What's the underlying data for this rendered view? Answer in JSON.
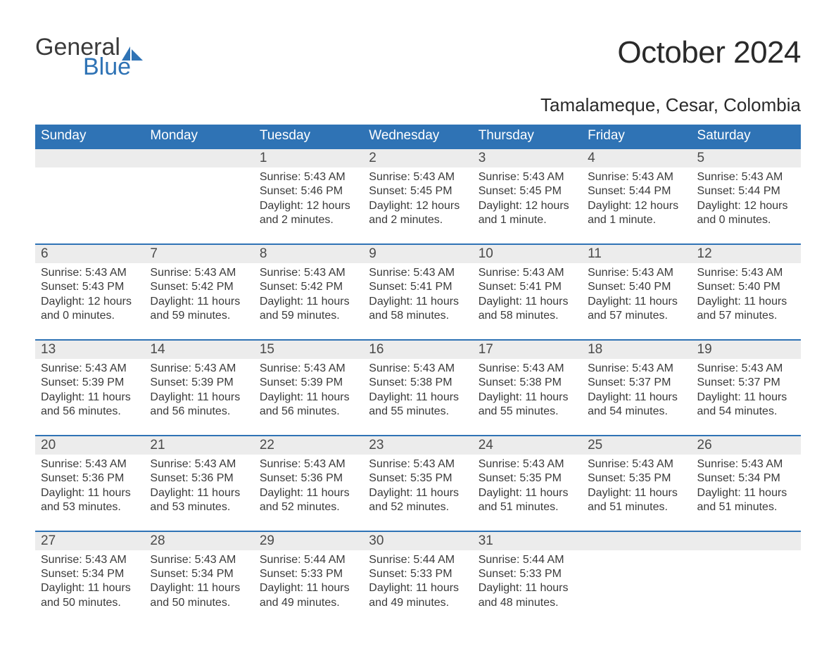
{
  "logo": {
    "word1": "General",
    "word2": "Blue",
    "accent_color": "#2f73b5",
    "text_color": "#3a3a3a"
  },
  "title": "October 2024",
  "location": "Tamalameque, Cesar, Colombia",
  "colors": {
    "header_bg": "#2f73b5",
    "header_text": "#ffffff",
    "daynum_bg": "#ececec",
    "body_text": "#3a3a3a",
    "rule": "#2f73b5",
    "page_bg": "#ffffff"
  },
  "fonts": {
    "title_size_pt": 33,
    "location_size_pt": 20,
    "dow_size_pt": 14,
    "daynum_size_pt": 14,
    "body_size_pt": 12
  },
  "days_of_week": [
    "Sunday",
    "Monday",
    "Tuesday",
    "Wednesday",
    "Thursday",
    "Friday",
    "Saturday"
  ],
  "weeks": [
    [
      {
        "n": "",
        "sunrise": "",
        "sunset": "",
        "daylight1": "",
        "daylight2": ""
      },
      {
        "n": "",
        "sunrise": "",
        "sunset": "",
        "daylight1": "",
        "daylight2": ""
      },
      {
        "n": "1",
        "sunrise": "Sunrise: 5:43 AM",
        "sunset": "Sunset: 5:46 PM",
        "daylight1": "Daylight: 12 hours",
        "daylight2": "and 2 minutes."
      },
      {
        "n": "2",
        "sunrise": "Sunrise: 5:43 AM",
        "sunset": "Sunset: 5:45 PM",
        "daylight1": "Daylight: 12 hours",
        "daylight2": "and 2 minutes."
      },
      {
        "n": "3",
        "sunrise": "Sunrise: 5:43 AM",
        "sunset": "Sunset: 5:45 PM",
        "daylight1": "Daylight: 12 hours",
        "daylight2": "and 1 minute."
      },
      {
        "n": "4",
        "sunrise": "Sunrise: 5:43 AM",
        "sunset": "Sunset: 5:44 PM",
        "daylight1": "Daylight: 12 hours",
        "daylight2": "and 1 minute."
      },
      {
        "n": "5",
        "sunrise": "Sunrise: 5:43 AM",
        "sunset": "Sunset: 5:44 PM",
        "daylight1": "Daylight: 12 hours",
        "daylight2": "and 0 minutes."
      }
    ],
    [
      {
        "n": "6",
        "sunrise": "Sunrise: 5:43 AM",
        "sunset": "Sunset: 5:43 PM",
        "daylight1": "Daylight: 12 hours",
        "daylight2": "and 0 minutes."
      },
      {
        "n": "7",
        "sunrise": "Sunrise: 5:43 AM",
        "sunset": "Sunset: 5:42 PM",
        "daylight1": "Daylight: 11 hours",
        "daylight2": "and 59 minutes."
      },
      {
        "n": "8",
        "sunrise": "Sunrise: 5:43 AM",
        "sunset": "Sunset: 5:42 PM",
        "daylight1": "Daylight: 11 hours",
        "daylight2": "and 59 minutes."
      },
      {
        "n": "9",
        "sunrise": "Sunrise: 5:43 AM",
        "sunset": "Sunset: 5:41 PM",
        "daylight1": "Daylight: 11 hours",
        "daylight2": "and 58 minutes."
      },
      {
        "n": "10",
        "sunrise": "Sunrise: 5:43 AM",
        "sunset": "Sunset: 5:41 PM",
        "daylight1": "Daylight: 11 hours",
        "daylight2": "and 58 minutes."
      },
      {
        "n": "11",
        "sunrise": "Sunrise: 5:43 AM",
        "sunset": "Sunset: 5:40 PM",
        "daylight1": "Daylight: 11 hours",
        "daylight2": "and 57 minutes."
      },
      {
        "n": "12",
        "sunrise": "Sunrise: 5:43 AM",
        "sunset": "Sunset: 5:40 PM",
        "daylight1": "Daylight: 11 hours",
        "daylight2": "and 57 minutes."
      }
    ],
    [
      {
        "n": "13",
        "sunrise": "Sunrise: 5:43 AM",
        "sunset": "Sunset: 5:39 PM",
        "daylight1": "Daylight: 11 hours",
        "daylight2": "and 56 minutes."
      },
      {
        "n": "14",
        "sunrise": "Sunrise: 5:43 AM",
        "sunset": "Sunset: 5:39 PM",
        "daylight1": "Daylight: 11 hours",
        "daylight2": "and 56 minutes."
      },
      {
        "n": "15",
        "sunrise": "Sunrise: 5:43 AM",
        "sunset": "Sunset: 5:39 PM",
        "daylight1": "Daylight: 11 hours",
        "daylight2": "and 56 minutes."
      },
      {
        "n": "16",
        "sunrise": "Sunrise: 5:43 AM",
        "sunset": "Sunset: 5:38 PM",
        "daylight1": "Daylight: 11 hours",
        "daylight2": "and 55 minutes."
      },
      {
        "n": "17",
        "sunrise": "Sunrise: 5:43 AM",
        "sunset": "Sunset: 5:38 PM",
        "daylight1": "Daylight: 11 hours",
        "daylight2": "and 55 minutes."
      },
      {
        "n": "18",
        "sunrise": "Sunrise: 5:43 AM",
        "sunset": "Sunset: 5:37 PM",
        "daylight1": "Daylight: 11 hours",
        "daylight2": "and 54 minutes."
      },
      {
        "n": "19",
        "sunrise": "Sunrise: 5:43 AM",
        "sunset": "Sunset: 5:37 PM",
        "daylight1": "Daylight: 11 hours",
        "daylight2": "and 54 minutes."
      }
    ],
    [
      {
        "n": "20",
        "sunrise": "Sunrise: 5:43 AM",
        "sunset": "Sunset: 5:36 PM",
        "daylight1": "Daylight: 11 hours",
        "daylight2": "and 53 minutes."
      },
      {
        "n": "21",
        "sunrise": "Sunrise: 5:43 AM",
        "sunset": "Sunset: 5:36 PM",
        "daylight1": "Daylight: 11 hours",
        "daylight2": "and 53 minutes."
      },
      {
        "n": "22",
        "sunrise": "Sunrise: 5:43 AM",
        "sunset": "Sunset: 5:36 PM",
        "daylight1": "Daylight: 11 hours",
        "daylight2": "and 52 minutes."
      },
      {
        "n": "23",
        "sunrise": "Sunrise: 5:43 AM",
        "sunset": "Sunset: 5:35 PM",
        "daylight1": "Daylight: 11 hours",
        "daylight2": "and 52 minutes."
      },
      {
        "n": "24",
        "sunrise": "Sunrise: 5:43 AM",
        "sunset": "Sunset: 5:35 PM",
        "daylight1": "Daylight: 11 hours",
        "daylight2": "and 51 minutes."
      },
      {
        "n": "25",
        "sunrise": "Sunrise: 5:43 AM",
        "sunset": "Sunset: 5:35 PM",
        "daylight1": "Daylight: 11 hours",
        "daylight2": "and 51 minutes."
      },
      {
        "n": "26",
        "sunrise": "Sunrise: 5:43 AM",
        "sunset": "Sunset: 5:34 PM",
        "daylight1": "Daylight: 11 hours",
        "daylight2": "and 51 minutes."
      }
    ],
    [
      {
        "n": "27",
        "sunrise": "Sunrise: 5:43 AM",
        "sunset": "Sunset: 5:34 PM",
        "daylight1": "Daylight: 11 hours",
        "daylight2": "and 50 minutes."
      },
      {
        "n": "28",
        "sunrise": "Sunrise: 5:43 AM",
        "sunset": "Sunset: 5:34 PM",
        "daylight1": "Daylight: 11 hours",
        "daylight2": "and 50 minutes."
      },
      {
        "n": "29",
        "sunrise": "Sunrise: 5:44 AM",
        "sunset": "Sunset: 5:33 PM",
        "daylight1": "Daylight: 11 hours",
        "daylight2": "and 49 minutes."
      },
      {
        "n": "30",
        "sunrise": "Sunrise: 5:44 AM",
        "sunset": "Sunset: 5:33 PM",
        "daylight1": "Daylight: 11 hours",
        "daylight2": "and 49 minutes."
      },
      {
        "n": "31",
        "sunrise": "Sunrise: 5:44 AM",
        "sunset": "Sunset: 5:33 PM",
        "daylight1": "Daylight: 11 hours",
        "daylight2": "and 48 minutes."
      },
      {
        "n": "",
        "sunrise": "",
        "sunset": "",
        "daylight1": "",
        "daylight2": ""
      },
      {
        "n": "",
        "sunrise": "",
        "sunset": "",
        "daylight1": "",
        "daylight2": ""
      }
    ]
  ]
}
